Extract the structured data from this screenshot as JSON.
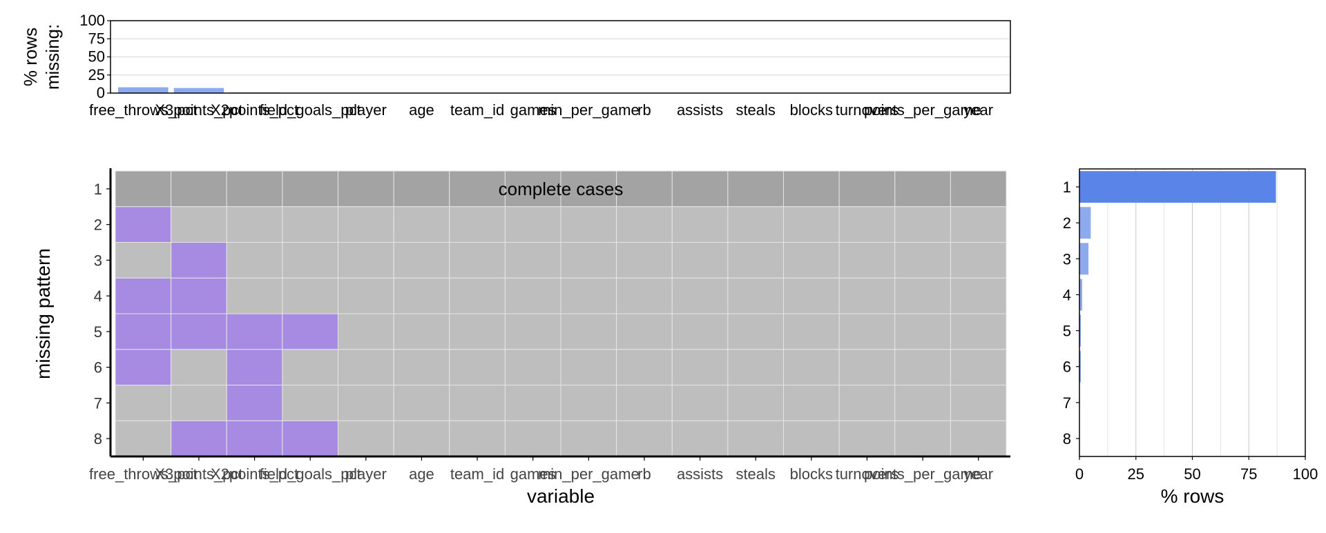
{
  "chart_data": [
    {
      "panel": "top",
      "type": "bar",
      "ylabel": "% rows\nmissing:",
      "ylim": [
        0,
        100
      ],
      "yticks": [
        0,
        25,
        50,
        75,
        100
      ],
      "categories": [
        "free_throws_pct",
        "X3points_pct",
        "X2points_pct",
        "field_goals_pct",
        "player",
        "age",
        "team_id",
        "games",
        "min_per_game",
        "rb",
        "assists",
        "steals",
        "blocks",
        "turnovers",
        "points_per_game",
        "year"
      ],
      "values": [
        8,
        7,
        1,
        0,
        0,
        0,
        0,
        0,
        0,
        0,
        0,
        0,
        0,
        0,
        0,
        0
      ],
      "grid": true
    },
    {
      "panel": "main",
      "type": "heatmap",
      "xlabel": "variable",
      "ylabel": "missing pattern",
      "annotation": "complete cases",
      "x_categories": [
        "free_throws_pct",
        "X3points_pct",
        "X2points_pct",
        "field_goals_pct",
        "player",
        "age",
        "team_id",
        "games",
        "min_per_game",
        "rb",
        "assists",
        "steals",
        "blocks",
        "turnovers",
        "points_per_game",
        "year"
      ],
      "pattern_labels": [
        "1",
        "2",
        "3",
        "4",
        "5",
        "6",
        "7",
        "8"
      ],
      "matrix": [
        [
          0,
          0,
          0,
          0,
          0,
          0,
          0,
          0,
          0,
          0,
          0,
          0,
          0,
          0,
          0,
          0
        ],
        [
          1,
          0,
          0,
          0,
          0,
          0,
          0,
          0,
          0,
          0,
          0,
          0,
          0,
          0,
          0,
          0
        ],
        [
          0,
          1,
          0,
          0,
          0,
          0,
          0,
          0,
          0,
          0,
          0,
          0,
          0,
          0,
          0,
          0
        ],
        [
          1,
          1,
          0,
          0,
          0,
          0,
          0,
          0,
          0,
          0,
          0,
          0,
          0,
          0,
          0,
          0
        ],
        [
          1,
          1,
          1,
          1,
          0,
          0,
          0,
          0,
          0,
          0,
          0,
          0,
          0,
          0,
          0,
          0
        ],
        [
          1,
          0,
          1,
          0,
          0,
          0,
          0,
          0,
          0,
          0,
          0,
          0,
          0,
          0,
          0,
          0
        ],
        [
          0,
          0,
          1,
          0,
          0,
          0,
          0,
          0,
          0,
          0,
          0,
          0,
          0,
          0,
          0,
          0
        ],
        [
          0,
          1,
          1,
          1,
          0,
          0,
          0,
          0,
          0,
          0,
          0,
          0,
          0,
          0,
          0,
          0
        ]
      ],
      "colors": {
        "complete": "#a3a3a3",
        "observed": "#bebebe",
        "missing": "#a78be3"
      }
    },
    {
      "panel": "right",
      "type": "bar",
      "orientation": "horizontal",
      "xlabel": "% rows",
      "xlim": [
        0,
        100
      ],
      "xticks": [
        0,
        25,
        50,
        75,
        100
      ],
      "categories": [
        "1",
        "2",
        "3",
        "4",
        "5",
        "6",
        "7",
        "8"
      ],
      "values": [
        87,
        5,
        4,
        1.2,
        0.6,
        0.6,
        0.1,
        0.1
      ],
      "grid": true
    }
  ],
  "colors": {
    "bar_strong": "#5b84e8",
    "bar_light": "#8eaaee"
  }
}
